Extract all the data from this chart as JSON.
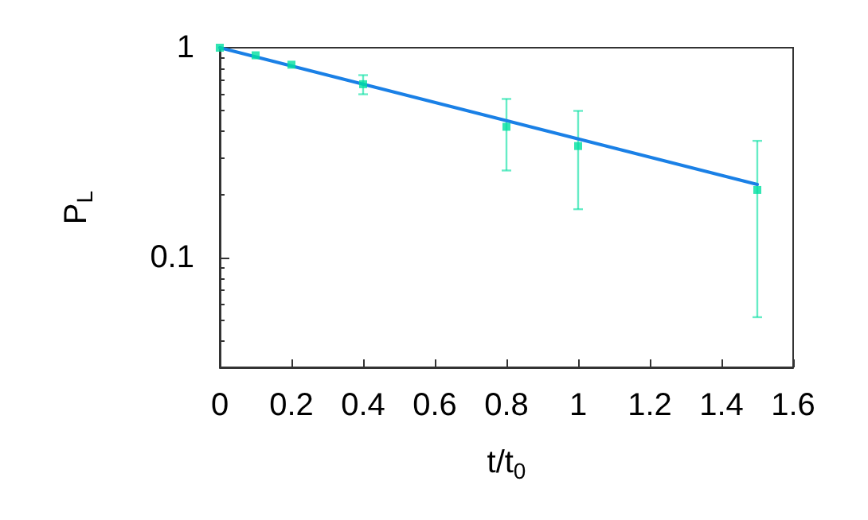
{
  "chart_data": {
    "type": "scatter",
    "xlabel": "t/t$_{0}$",
    "ylabel": "P$_{L}$",
    "log": "y",
    "grid": false,
    "marker": "square",
    "xlim": [
      0,
      1.6
    ],
    "xticks": [
      0,
      0.2,
      0.4,
      0.6,
      0.8,
      1,
      1.2,
      1.4,
      1.6
    ],
    "ylim": [
      0.03,
      1
    ],
    "yticks": [
      0.1,
      1
    ],
    "series": [
      {
        "color": "#00e0a0",
        "x": [
          0,
          0.1,
          0.2,
          0.4,
          0.8,
          1.0,
          1.5
        ],
        "values": [
          1,
          0.92,
          0.83,
          0.67,
          0.42,
          0.34,
          0.21
        ],
        "errors": [
          null,
          null,
          null,
          [
            0.6,
            0.74
          ],
          [
            0.26,
            0.57
          ],
          [
            0.17,
            0.5
          ],
          [
            0.052,
            0.36
          ]
        ]
      },
      {
        "type": "line",
        "color": "#1a80e6",
        "x": [
          0,
          1.5
        ],
        "values": [
          1,
          0.223
        ],
        "marker": "none"
      }
    ]
  }
}
